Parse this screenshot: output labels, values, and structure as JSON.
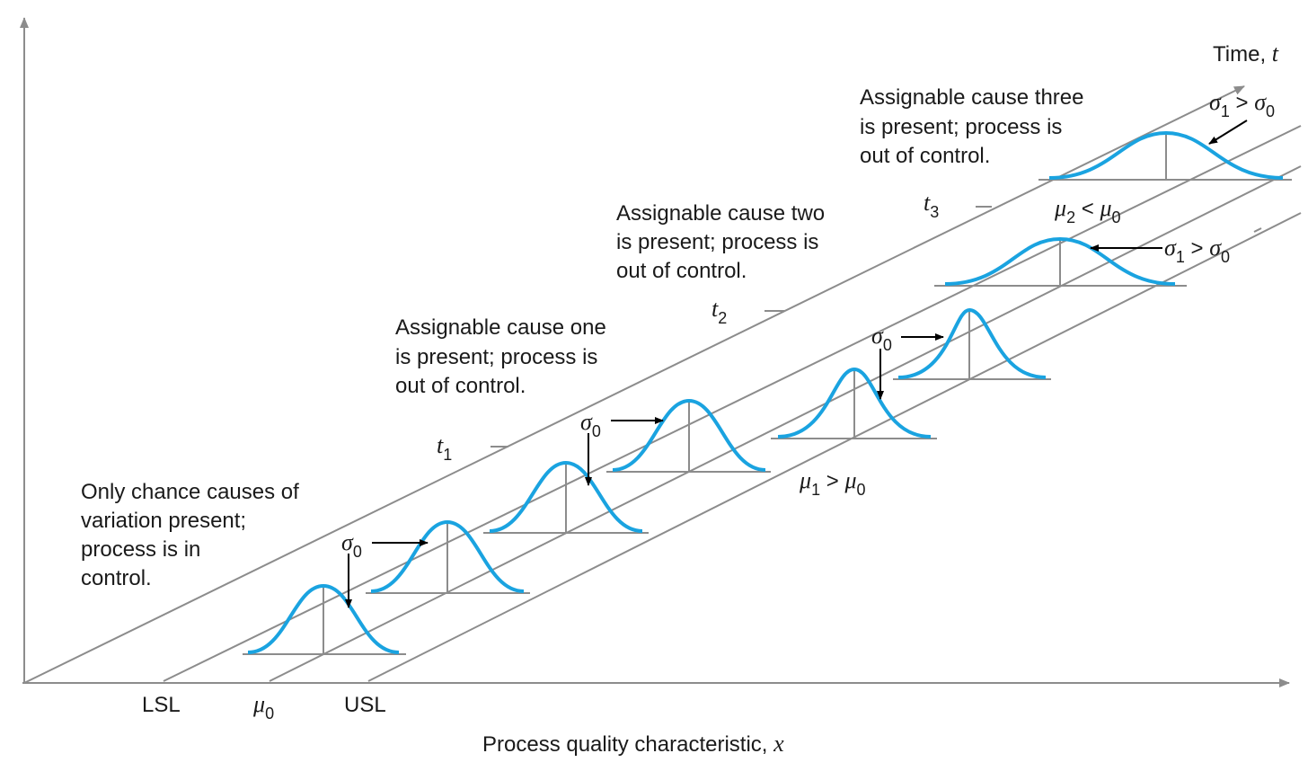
{
  "axes": {
    "x_label": "Process quality characteristic, ",
    "x_var": "x",
    "t_label": "Time, ",
    "t_var": "t",
    "ticks": {
      "lsl": "LSL",
      "mu": "μ",
      "mu_sub": "0",
      "usl": "USL"
    }
  },
  "times": [
    {
      "label": "t",
      "sub": "1"
    },
    {
      "label": "t",
      "sub": "2"
    },
    {
      "label": "t",
      "sub": "3"
    }
  ],
  "captions": {
    "in_control": [
      "Only chance causes of",
      "variation present;",
      "process is in",
      "control."
    ],
    "cause_one": [
      "Assignable cause one",
      "is present; process is",
      "out of control."
    ],
    "cause_two": [
      "Assignable cause two",
      "is present; process is",
      "out of control."
    ],
    "cause_three": [
      "Assignable cause three",
      "is present; process is",
      "out of control."
    ]
  },
  "annotations": {
    "sigma0": {
      "sym": "σ",
      "sub": "0"
    },
    "mu1_gt_mu0": {
      "a": "μ",
      "a_sub": "1",
      "op": " > ",
      "b": "μ",
      "b_sub": "0"
    },
    "mu2_lt_mu0": {
      "a": "μ",
      "a_sub": "2",
      "op": " < ",
      "b": "μ",
      "b_sub": "0"
    },
    "sigma1_gt_sigma0": {
      "a": "σ",
      "a_sub": "1",
      "op": " > ",
      "b": "σ",
      "b_sub": "0"
    }
  },
  "colors": {
    "curve": "#1aa3e0",
    "guide": "#8c8c8c",
    "text": "#1a1a1a"
  }
}
